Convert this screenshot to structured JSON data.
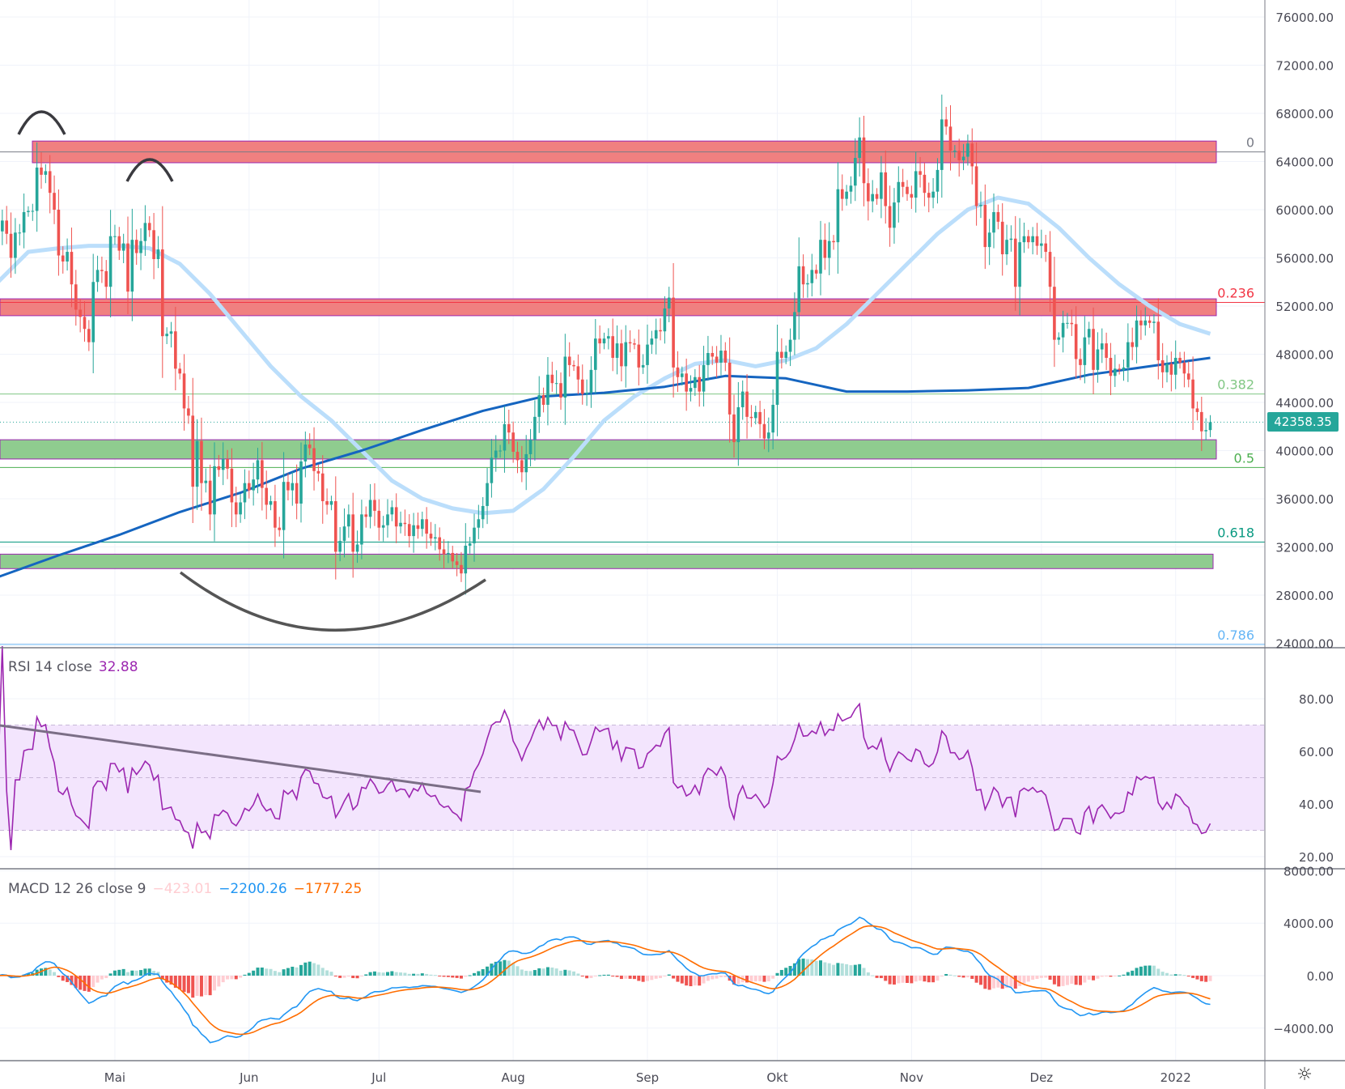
{
  "chart_data": {
    "type": "candlestick",
    "start_date": "2021-04-04",
    "interval": "1D",
    "closes": [
      58200,
      59100,
      58000,
      56000,
      58100,
      58100,
      59800,
      59900,
      59900,
      63500,
      62900,
      63200,
      61400,
      60000,
      56200,
      55700,
      56500,
      53800,
      51700,
      51100,
      50100,
      49000,
      54000,
      55000,
      54900,
      53600,
      57800,
      57800,
      56600,
      57200,
      53200,
      57500,
      56400,
      57400,
      58900,
      58300,
      55900,
      56700,
      49500,
      49700,
      49900,
      46800,
      46400,
      43500,
      42900,
      37000,
      40800,
      37300,
      37500,
      34700,
      38700,
      38400,
      39300,
      38500,
      35700,
      34700,
      35700,
      37300,
      36700,
      37600,
      39200,
      36900,
      35500,
      35800,
      33600,
      33400,
      37400,
      36700,
      37300,
      35600,
      39100,
      40500,
      40200,
      38300,
      38100,
      35800,
      35500,
      35800,
      31600,
      32500,
      33700,
      34700,
      31600,
      32200,
      34700,
      34500,
      35900,
      35000,
      33600,
      33800,
      34700,
      35300,
      33700,
      34000,
      33900,
      32900,
      33800,
      33500,
      34300,
      33100,
      32700,
      32800,
      31800,
      31400,
      31500,
      30800,
      30500,
      29800,
      32100,
      32300,
      33600,
      34300,
      35400,
      37300,
      39400,
      40000,
      40000,
      42200,
      41500,
      39900,
      39200,
      38200,
      39700,
      40900,
      42800,
      44600,
      43800,
      46300,
      45600,
      45600,
      44400,
      47800,
      47100,
      47000,
      45900,
      44700,
      44800,
      46700,
      49300,
      48900,
      49300,
      49500,
      47700,
      48900,
      47000,
      49000,
      48900,
      48800,
      46900,
      47100,
      48800,
      49300,
      50000,
      49900,
      51800,
      52700,
      46900,
      46100,
      46400,
      44900,
      45200,
      46100,
      44900,
      47100,
      48100,
      47800,
      47300,
      48300,
      47300,
      43000,
      40700,
      43600,
      44900,
      42800,
      42700,
      43200,
      42200,
      41000,
      41500,
      43800,
      48200,
      47700,
      48200,
      49200,
      51500,
      55300,
      53800,
      53900,
      55000,
      54700,
      57500,
      56000,
      57400,
      57300,
      61700,
      60900,
      61500,
      62000,
      64300,
      66000,
      62200,
      60700,
      61300,
      60900,
      63100,
      60300,
      58500,
      60600,
      62300,
      61900,
      61300,
      61000,
      63200,
      62900,
      61400,
      61000,
      61500,
      63300,
      67500,
      66900,
      64900,
      64900,
      64100,
      64400,
      65500,
      63600,
      60300,
      60400,
      56900,
      58100,
      59800,
      59000,
      56300,
      57500,
      57600,
      53600,
      57300,
      57800,
      57300,
      57800,
      57000,
      57200,
      56500,
      53600,
      49200,
      49400,
      50600,
      50600,
      50500,
      47600,
      47100,
      49400,
      50100,
      46700,
      48400,
      48900,
      47700,
      46200,
      46800,
      46700,
      46900,
      49000,
      48600,
      50800,
      50400,
      50800,
      50600,
      50700,
      47500,
      46500,
      47200,
      46300,
      47700,
      47300,
      46400,
      45900,
      43500,
      43200,
      41600,
      41700,
      42358.35
    ],
    "moving_averages": [
      {
        "color": "#bbdefb",
        "step_days": 7,
        "values": [
          54000,
          56500,
          56800,
          57000,
          57000,
          56800,
          55500,
          53000,
          50000,
          47000,
          44500,
          42500,
          40000,
          37500,
          36000,
          35200,
          34800,
          35000,
          36800,
          39500,
          42500,
          44500,
          46000,
          47200,
          47500,
          47000,
          47500,
          48500,
          50500,
          53000,
          55500,
          58000,
          60000,
          61000,
          60500,
          58500,
          56000,
          53800,
          52000,
          50500,
          49700
        ]
      },
      {
        "color": "#1565c0",
        "step_days": 14,
        "values": [
          29500,
          31300,
          33000,
          34900,
          36500,
          38500,
          40000,
          41700,
          43300,
          44500,
          44800,
          45300,
          46200,
          46000,
          44900,
          44900,
          45000,
          45200,
          46300,
          47000,
          47700
        ]
      }
    ],
    "last_price": "42358.35",
    "price_axis": {
      "min": 24000,
      "max": 76000,
      "ticks": [
        "76000.00",
        "72000.00",
        "68000.00",
        "64000.00",
        "60000.00",
        "56000.00",
        "52000.00",
        "48000.00",
        "44000.00",
        "40000.00",
        "36000.00",
        "32000.00",
        "28000.00",
        "24000.00"
      ],
      "tick_values": [
        76000,
        72000,
        68000,
        64000,
        60000,
        56000,
        52000,
        48000,
        44000,
        40000,
        36000,
        32000,
        28000,
        24000
      ]
    },
    "time_axis": {
      "labels": [
        "Mai",
        "Jun",
        "Jul",
        "Aug",
        "Sep",
        "Okt",
        "Nov",
        "Dez",
        "2022"
      ],
      "dates": [
        "2021-05-01",
        "2021-06-01",
        "2021-07-01",
        "2021-08-01",
        "2021-09-01",
        "2021-10-01",
        "2021-11-01",
        "2021-12-01",
        "2022-01-01"
      ]
    },
    "zones": [
      {
        "type": "resistance",
        "color": "#f08080",
        "from": 63900,
        "to": 65700
      },
      {
        "type": "resistance",
        "color": "#f08080",
        "from": 51200,
        "to": 52600
      },
      {
        "type": "support",
        "color": "#8fcc8f",
        "from": 39300,
        "to": 40900
      },
      {
        "type": "support",
        "color": "#8fcc8f",
        "from": 30200,
        "to": 31400
      }
    ],
    "fibonacci": [
      {
        "label": "0",
        "price": 64800,
        "color": "#787b86"
      },
      {
        "label": "0.236",
        "price": 52300,
        "color": "#f23645"
      },
      {
        "label": "0.382",
        "price": 44700,
        "color": "#81c784"
      },
      {
        "label": "0.5",
        "price": 38600,
        "color": "#4caf50"
      },
      {
        "label": "0.618",
        "price": 32400,
        "color": "#089981"
      },
      {
        "label": "0.786",
        "price": 23900,
        "color": "#64b5f6"
      }
    ],
    "rsi": {
      "title": "RSI 14 close",
      "value": "32.88",
      "ticks": [
        "80.00",
        "60.00",
        "40.00",
        "20.00"
      ],
      "tick_values": [
        80,
        60,
        40,
        20
      ],
      "band": [
        30,
        70
      ],
      "color": "#9c27b0"
    },
    "macd": {
      "title": "MACD 12 26 close 9",
      "histogram": "−423.01",
      "macd": "−2200.26",
      "signal": "−1777.25",
      "ticks": [
        "8000.00",
        "4000.00",
        "0.00",
        "−4000.00"
      ],
      "tick_values": [
        8000,
        4000,
        0,
        -4000
      ],
      "colors": {
        "macd": "#2196f3",
        "signal": "#ff6d00",
        "hist_up": "#26a69a",
        "hist_up_weak": "#b2dfdb",
        "hist_down": "#ef5350",
        "hist_down_weak": "#ffcdd2"
      }
    },
    "candle_colors": {
      "up": "#26a69a",
      "down": "#ef5350"
    }
  },
  "settings_icon": "gear-icon"
}
